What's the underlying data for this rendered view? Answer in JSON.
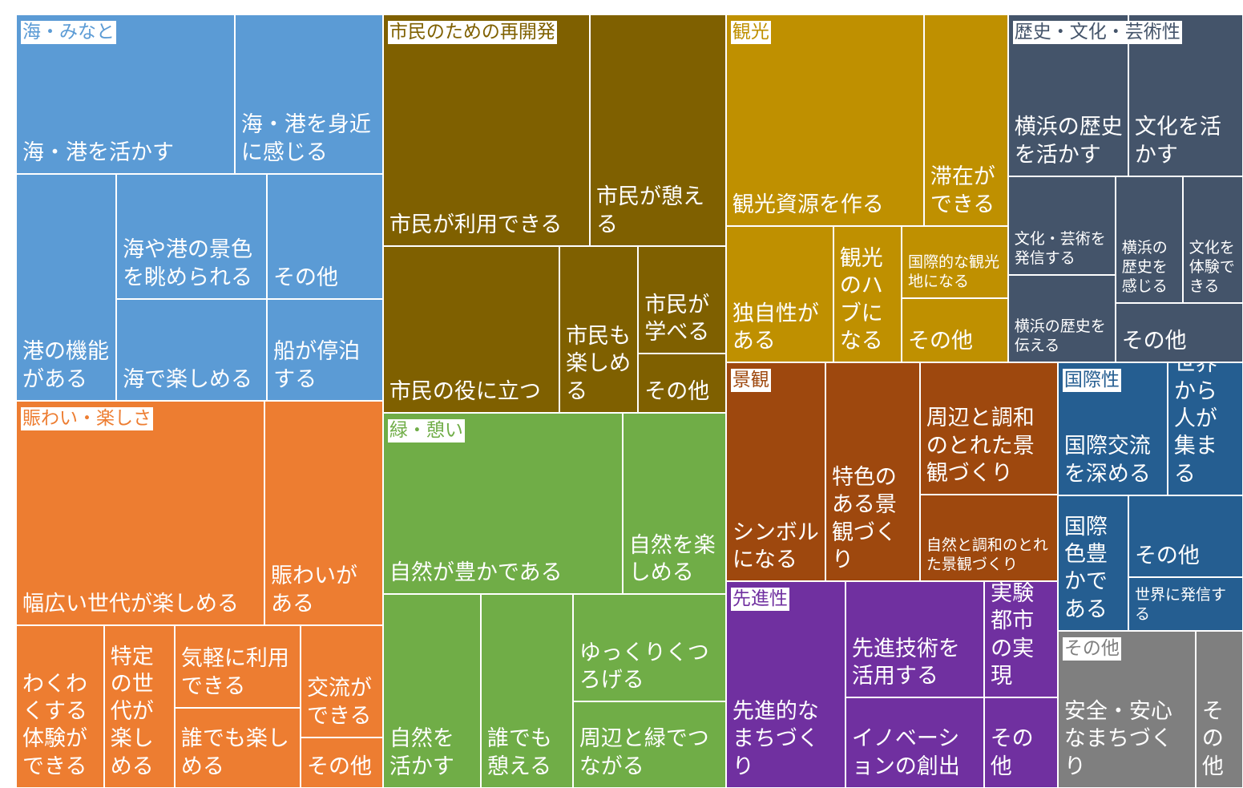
{
  "chart_data": {
    "type": "treemap",
    "groups": [
      {
        "name": "海・みなと",
        "color": "#5b9bd5",
        "children": [
          {
            "name": "海・港を活かす",
            "value": 543
          },
          {
            "name": "海・港を身近に感じる",
            "value": 368
          },
          {
            "name": "港の機能がある",
            "value": 354
          },
          {
            "name": "海や港の景色を眺められる",
            "value": 293
          },
          {
            "name": "その他",
            "value": 226
          },
          {
            "name": "海で楽しめる",
            "value": 239
          },
          {
            "name": "船が停泊する",
            "value": 184
          }
        ]
      },
      {
        "name": "賑わい・楽しさ",
        "color": "#ed7d31",
        "children": [
          {
            "name": "幅広い世代が楽しめる",
            "value": 868
          },
          {
            "name": "賑わいがある",
            "value": 414
          },
          {
            "name": "わくわくする体験ができる",
            "value": 223
          },
          {
            "name": "特定の世代が楽しめる",
            "value": 179
          },
          {
            "name": "気軽に利用できる",
            "value": 162
          },
          {
            "name": "誰でも楽しめる",
            "value": 157
          },
          {
            "name": "交流ができる",
            "value": 144
          },
          {
            "name": "その他",
            "value": 65
          }
        ]
      },
      {
        "name": "市民のための再開発",
        "color": "#7f6000",
        "children": [
          {
            "name": "市民が利用できる",
            "value": 746
          },
          {
            "name": "市民が憩える",
            "value": 491
          },
          {
            "name": "市民の役に立つ",
            "value": 458
          },
          {
            "name": "市民も楽しめる",
            "value": 204
          },
          {
            "name": "市民が学べる",
            "value": 147
          },
          {
            "name": "その他",
            "value": 81
          }
        ]
      },
      {
        "name": "緑・憩い",
        "color": "#70ad47",
        "children": [
          {
            "name": "自然が豊かである",
            "value": 676
          },
          {
            "name": "自然を楽しめる",
            "value": 292
          },
          {
            "name": "自然を活かす",
            "value": 295
          },
          {
            "name": "誰でも憩える",
            "value": 278
          },
          {
            "name": "ゆっくりくつろげる",
            "value": 256
          },
          {
            "name": "周辺と緑でつながる",
            "value": 206
          }
        ]
      },
      {
        "name": "観光",
        "color": "#bf9000",
        "children": [
          {
            "name": "観光資源を作る",
            "value": 652
          },
          {
            "name": "滞在ができる",
            "value": 277
          },
          {
            "name": "独自性がある",
            "value": 228
          },
          {
            "name": "観光のハブになる",
            "value": 145
          },
          {
            "name": "国際的な観光地になる",
            "value": 120
          },
          {
            "name": "その他",
            "value": 106
          }
        ]
      },
      {
        "name": "歴史・文化・芸術性",
        "color": "#44546a",
        "children": [
          {
            "name": "横浜の歴史を活かす",
            "value": 303
          },
          {
            "name": "文化を活かす",
            "value": 289
          },
          {
            "name": "文化・芸術を発信する",
            "value": 165
          },
          {
            "name": "横浜の歴史を伝える",
            "value": 146
          },
          {
            "name": "横浜の歴史を感じる",
            "value": 133
          },
          {
            "name": "文化を体験できる",
            "value": 119
          },
          {
            "name": "その他",
            "value": 118
          }
        ]
      },
      {
        "name": "景観",
        "color": "#9e480e",
        "children": [
          {
            "name": "シンボルになる",
            "value": 339
          },
          {
            "name": "特色のある景観づくり",
            "value": 322
          },
          {
            "name": "周辺と調和のとれた景観づくり",
            "value": 284
          },
          {
            "name": "自然と調和のとれた景観づくり",
            "value": 186
          }
        ]
      },
      {
        "name": "先進性",
        "color": "#7030a0",
        "children": [
          {
            "name": "先進的なまちづくり",
            "value": 384
          },
          {
            "name": "先進技術を活用する",
            "value": 251
          },
          {
            "name": "実験都市の実現",
            "value": 133
          },
          {
            "name": "イノベーションの創出",
            "value": 195
          },
          {
            "name": "その他",
            "value": 104
          }
        ]
      },
      {
        "name": "国際性",
        "color": "#255e91",
        "children": [
          {
            "name": "国際交流を深める",
            "value": 227
          },
          {
            "name": "世界から人が集まる",
            "value": 156
          },
          {
            "name": "国際色豊かである",
            "value": 149
          },
          {
            "name": "その他",
            "value": 146
          },
          {
            "name": "世界に発信する",
            "value": 96
          }
        ]
      },
      {
        "name": "その他",
        "color": "#7f7f7f",
        "children": [
          {
            "name": "安全・安心なまちづくり",
            "value": 337
          },
          {
            "name": "その他",
            "value": 116
          }
        ]
      }
    ]
  }
}
